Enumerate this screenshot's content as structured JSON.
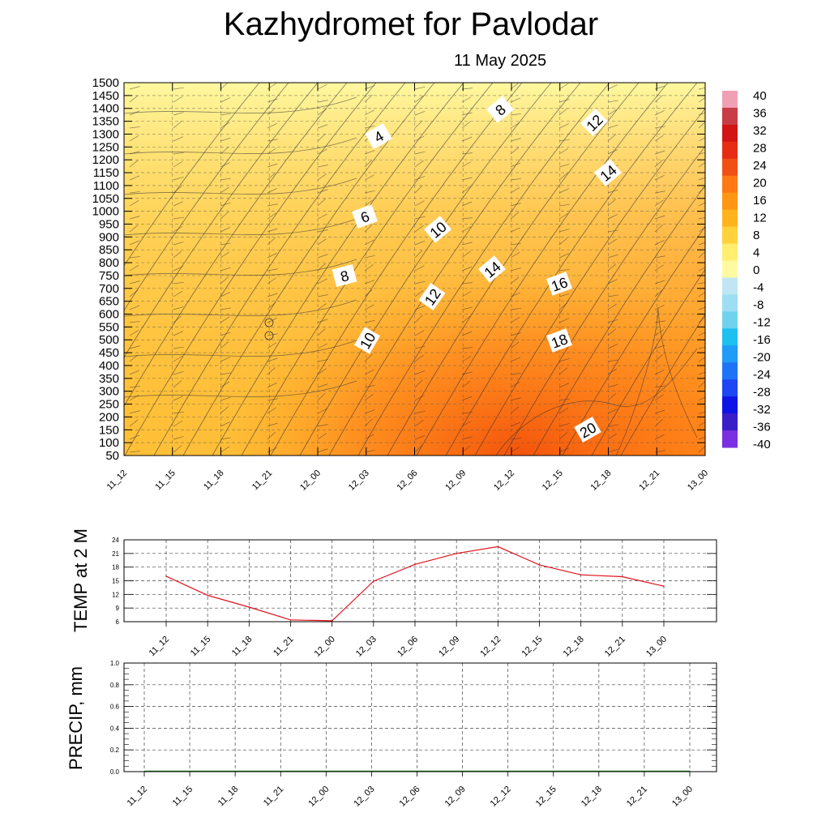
{
  "header": {
    "title": "Kazhydromet  for Pavlodar",
    "date": "11 May 2025"
  },
  "chart_data": [
    {
      "type": "heatmap",
      "title": "Kazhydromet  for Pavlodar",
      "subtitle": "11 May 2025",
      "x_labels": [
        "11_12",
        "11_15",
        "11_18",
        "11_21",
        "12_00",
        "12_03",
        "12_06",
        "12_09",
        "12_12",
        "12_15",
        "12_18",
        "12_21",
        "13_00"
      ],
      "y_labels": [
        "50",
        "100",
        "150",
        "200",
        "250",
        "300",
        "350",
        "400",
        "450",
        "500",
        "550",
        "600",
        "650",
        "700",
        "750",
        "800",
        "850",
        "900",
        "950",
        "1000",
        "1050",
        "1100",
        "1150",
        "1200",
        "1250",
        "1300",
        "1350",
        "1400",
        "1450",
        "1500"
      ],
      "colorbar": {
        "ticks": [
          "40",
          "36",
          "32",
          "28",
          "24",
          "20",
          "16",
          "12",
          "8",
          "4",
          "0",
          "-4",
          "-8",
          "-12",
          "-16",
          "-20",
          "-24",
          "-28",
          "-32",
          "-36",
          "-40"
        ],
        "range": [
          -40,
          40
        ],
        "colors": [
          "#7a2fe0",
          "#3a1ec8",
          "#0f14e6",
          "#1e46f2",
          "#1e74f7",
          "#1e9cf7",
          "#1ec0f0",
          "#6fd2ee",
          "#9edef2",
          "#bfe6f2",
          "#fffaa0",
          "#ffee70",
          "#ffd23c",
          "#ffb41e",
          "#ff9614",
          "#ff7814",
          "#f05014",
          "#e62d14",
          "#d21414",
          "#c83c46",
          "#f0a0b4"
        ]
      },
      "contour_labels": [
        "4",
        "6",
        "8",
        "8",
        "10",
        "10",
        "10",
        "12",
        "12",
        "12",
        "14",
        "14",
        "16",
        "18",
        "20"
      ],
      "grid": true
    },
    {
      "type": "line",
      "ylabel": "TEMP at 2 M",
      "x": [
        "11_12",
        "11_15",
        "11_18",
        "11_21",
        "12_00",
        "12_03",
        "12_06",
        "12_09",
        "12_12",
        "12_15",
        "12_18",
        "12_21",
        "13_00"
      ],
      "series": [
        {
          "values": [
            16,
            11.8,
            9.2,
            6.4,
            6.2,
            14.9,
            18.6,
            21,
            22.5,
            18.5,
            16.3,
            15.9,
            13.8
          ],
          "color": "#e0141e"
        }
      ],
      "yticks": [
        "6",
        "9",
        "12",
        "15",
        "18",
        "21",
        "24"
      ],
      "ylim": [
        6,
        24
      ],
      "grid": true
    },
    {
      "type": "line",
      "ylabel": "PRECIP, mm",
      "x": [
        "11_12",
        "11_15",
        "11_18",
        "11_21",
        "12_00",
        "12_03",
        "12_06",
        "12_09",
        "12_12",
        "12_15",
        "12_18",
        "12_21",
        "13_00"
      ],
      "series": [
        {
          "values": [
            0,
            0,
            0,
            0,
            0,
            0,
            0,
            0,
            0,
            0,
            0,
            0,
            0
          ],
          "color": "#1e8c1e"
        }
      ],
      "yticks": [
        "0.0",
        "0.2",
        "0.4",
        "0.6",
        "0.8",
        "1.0"
      ],
      "ylim": [
        0,
        1
      ],
      "grid": true
    }
  ]
}
